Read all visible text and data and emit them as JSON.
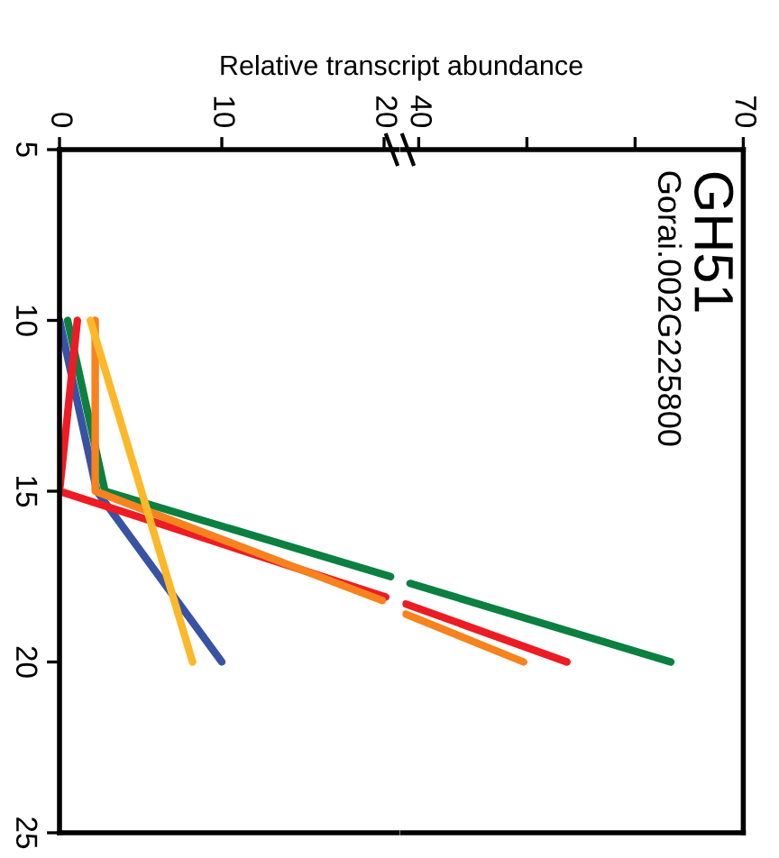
{
  "chart_data": [
    {
      "type": "line",
      "xlabel": "Relative transcript abundance",
      "xlim": [
        0,
        20.8
      ],
      "xticks": [
        0,
        10,
        20
      ],
      "ylim": [
        25,
        5
      ],
      "yticks": [
        5,
        10,
        15,
        20,
        25
      ],
      "grid": false,
      "marker": "none",
      "line_style": "solid",
      "series": [
        {
          "color": "#3953a4",
          "x": [
            0,
            2.3,
            10
          ],
          "values": [
            10,
            15,
            20
          ]
        },
        {
          "color": "#0b8040",
          "x": [
            0.5,
            2.8,
            20.4
          ],
          "values": [
            10,
            15,
            17.5
          ]
        },
        {
          "color": "#ed1c24",
          "x": [
            1.1,
            0,
            20.1
          ],
          "values": [
            10,
            15,
            18.1
          ]
        },
        {
          "color": "#f7821e",
          "x": [
            2.2,
            2.2,
            19.9
          ],
          "values": [
            10,
            15,
            18.2
          ]
        },
        {
          "color": "#fbb829",
          "x": [
            1.9,
            8.2
          ],
          "values": [
            10,
            20
          ]
        }
      ]
    },
    {
      "type": "line",
      "title": "GH51",
      "subtitle": "Gorai.002G225800",
      "xlim": [
        38.5,
        70
      ],
      "xticks": [
        40,
        {
          "value": 50,
          "label": null
        },
        {
          "value": 60,
          "label": null
        },
        70
      ],
      "ylim": [
        25,
        5
      ],
      "tick_labels": "x",
      "grid": false,
      "marker": "none",
      "line_style": "solid",
      "series": [
        {
          "color": "#0b8040",
          "x": [
            39.2,
            63.3
          ],
          "values": [
            17.7,
            20
          ]
        },
        {
          "color": "#ed1c24",
          "x": [
            38.8,
            53.7
          ],
          "values": [
            18.3,
            20
          ]
        },
        {
          "color": "#f7821e",
          "x": [
            38.8,
            49.7
          ],
          "values": [
            18.6,
            20
          ]
        }
      ]
    }
  ]
}
